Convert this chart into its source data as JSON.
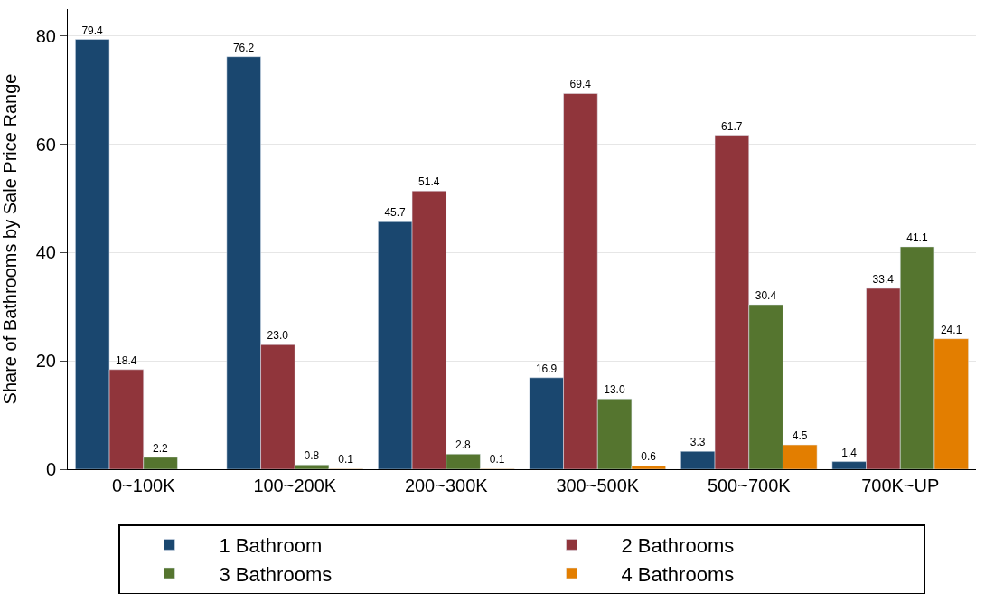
{
  "chart_data": {
    "type": "bar",
    "ylabel": "Share of Bathrooms by Sale Price Range",
    "categories": [
      "0~100K",
      "100~200K",
      "200~300K",
      "300~500K",
      "500~700K",
      "700K~UP"
    ],
    "series": [
      {
        "name": "1 Bathroom",
        "color": "#1a476f",
        "values": [
          79.4,
          76.2,
          45.7,
          16.9,
          3.3,
          1.4
        ],
        "value_labels": [
          "79.4",
          "76.2",
          "45.7",
          "16.9",
          "3.3",
          "1.4"
        ]
      },
      {
        "name": "2 Bathrooms",
        "color": "#90353b",
        "values": [
          18.4,
          23.0,
          51.4,
          69.4,
          61.7,
          33.4
        ],
        "value_labels": [
          "18.4",
          "23.0",
          "51.4",
          "69.4",
          "61.7",
          "33.4"
        ]
      },
      {
        "name": "3 Bathrooms",
        "color": "#55752f",
        "values": [
          2.2,
          0.8,
          2.8,
          13.0,
          30.4,
          41.1
        ],
        "value_labels": [
          "2.2",
          "0.8",
          "2.8",
          "13.0",
          "30.4",
          "41.1"
        ]
      },
      {
        "name": "4 Bathrooms",
        "color": "#e37e00",
        "values": [
          null,
          0.1,
          0.1,
          0.6,
          4.5,
          24.1
        ],
        "value_labels": [
          null,
          "0.1",
          "0.1",
          "0.6",
          "4.5",
          "24.1"
        ]
      }
    ],
    "ylim": [
      0,
      85
    ],
    "yticks": [
      0,
      20,
      40,
      60,
      80
    ],
    "grid": "y",
    "legend": "bottom"
  }
}
